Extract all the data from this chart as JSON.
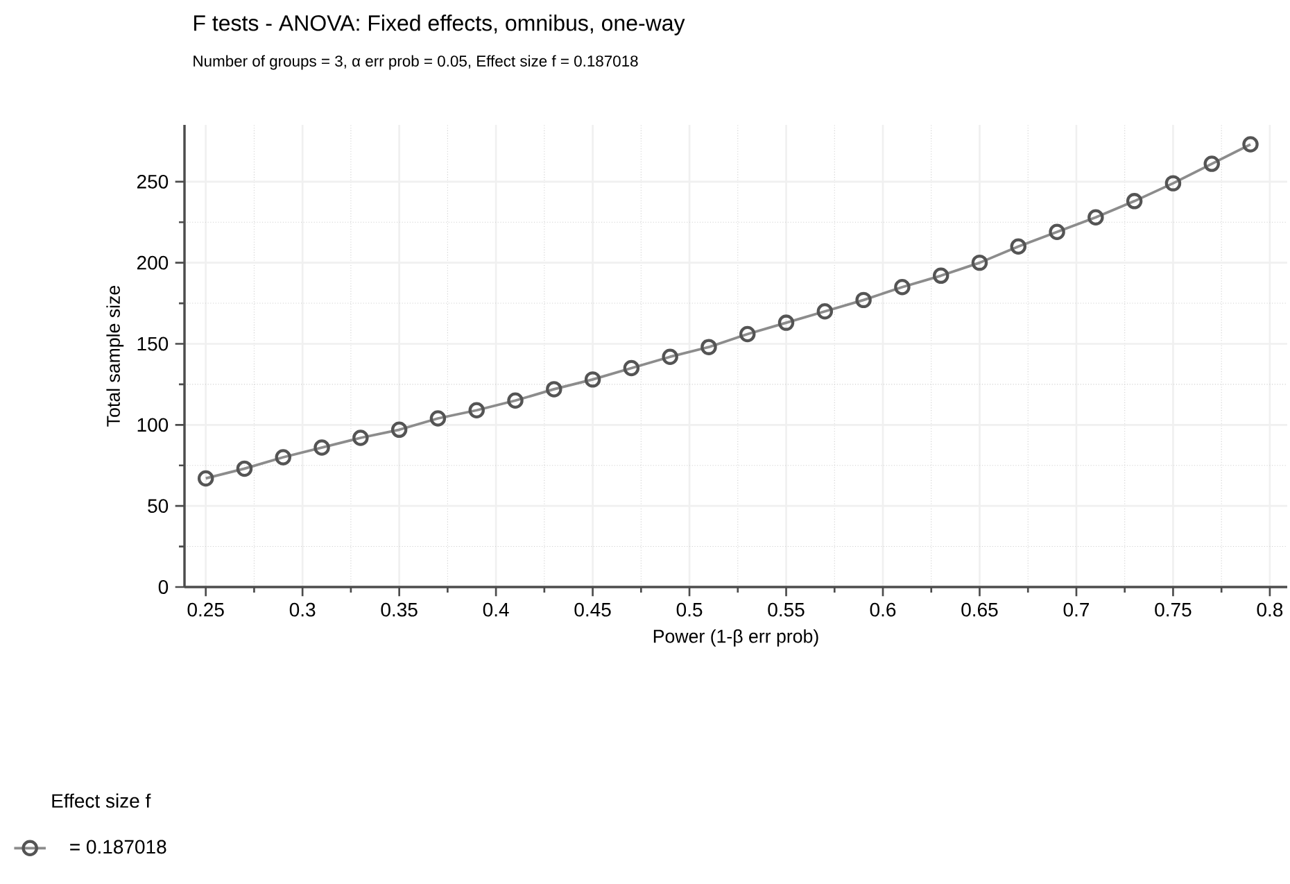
{
  "chart_data": {
    "type": "line",
    "title": "F tests - ANOVA: Fixed effects, omnibus, one-way",
    "subtitle": "Number of groups = 3, α err prob = 0.05, Effect size f = 0.187018",
    "xlabel": "Power (1-β err prob)",
    "ylabel": "Total sample size",
    "legend_title": "Effect size f",
    "x": [
      0.25,
      0.27,
      0.29,
      0.31,
      0.33,
      0.35,
      0.37,
      0.39,
      0.41,
      0.43,
      0.45,
      0.47,
      0.49,
      0.51,
      0.53,
      0.55,
      0.57,
      0.59,
      0.61,
      0.63,
      0.65,
      0.67,
      0.69,
      0.71,
      0.73,
      0.75,
      0.77,
      0.79
    ],
    "series": [
      {
        "name": "= 0.187018",
        "color": "#8c8c8c",
        "values": [
          67,
          73,
          80,
          86,
          92,
          97,
          104,
          109,
          115,
          122,
          128,
          135,
          142,
          148,
          156,
          163,
          170,
          177,
          185,
          192,
          200,
          210,
          219,
          228,
          238,
          249,
          261,
          273
        ]
      }
    ],
    "xlim": [
      0.239,
      0.809
    ],
    "ylim": [
      0,
      285
    ],
    "xticks": [
      0.25,
      0.3,
      0.35,
      0.4,
      0.45,
      0.5,
      0.55,
      0.6,
      0.65,
      0.7,
      0.75,
      0.8
    ],
    "yticks": [
      0,
      50,
      100,
      150,
      200,
      250
    ],
    "grid": true,
    "legend": "bottom left",
    "marker": "circle",
    "line_style": "solid"
  }
}
